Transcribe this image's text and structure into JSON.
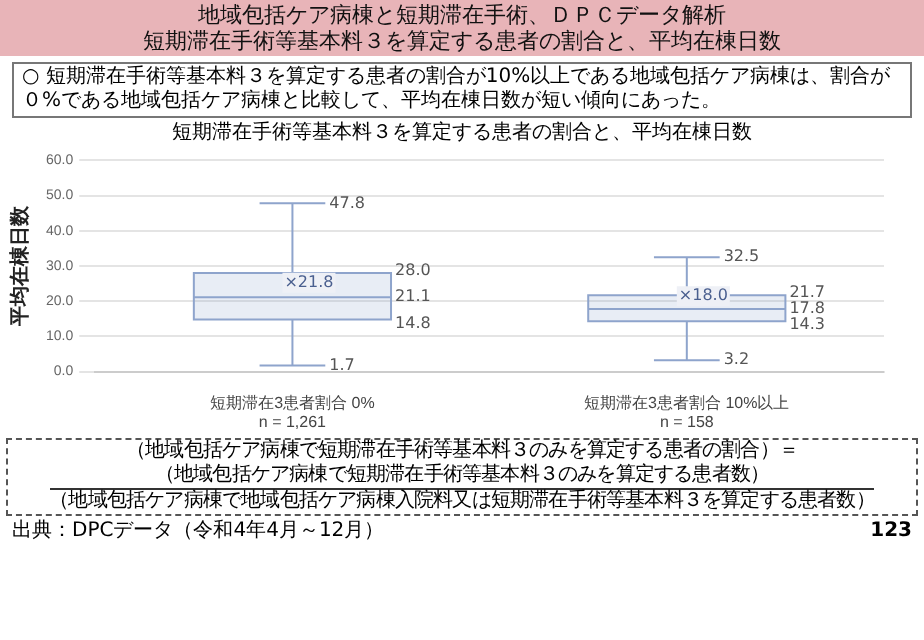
{
  "chart_data": {
    "type": "box",
    "title": "短期滞在手術等基本料３を算定する患者の割合と、平均在棟日数",
    "subtitle": "○ 短期滞在手術等基本料３を算定する患者の割合が10%以上である地域包括ケア病棟は、割合が０%である地域包括ケア病棟と比較して、平均在棟日数が短い傾向にあった。",
    "ylabel": "平均在棟日数",
    "categories": [
      "短期滞在3患者割合 0%\nn = 1,261",
      "短期滞在3患者割合 10%以上\nn = 158"
    ],
    "series": [
      {
        "color": "#8ea4cc",
        "boxes": [
          {
            "low": 1.7,
            "q1": 14.8,
            "median": 21.1,
            "q3": 28.0,
            "high": 47.8,
            "mean": 21.8
          },
          {
            "low": 3.2,
            "q1": 14.3,
            "median": 17.8,
            "q3": 21.7,
            "high": 32.5,
            "mean": 18.0
          }
        ]
      }
    ],
    "ylim": [
      0,
      60
    ],
    "yticks": [
      {
        "value": 0,
        "label": "0.0"
      },
      {
        "value": 10,
        "label": "10.0"
      },
      {
        "value": 20,
        "label": "20.0"
      },
      {
        "value": 30,
        "label": "30.0"
      },
      {
        "value": 40,
        "label": "40.0"
      },
      {
        "value": 50,
        "label": "50.0"
      },
      {
        "value": 60,
        "label": "60.0"
      }
    ],
    "grid": "y",
    "annotations": [
      "地域包括ケア病棟と短期滞在手術、ＤＰＣデータ解析",
      "（地域包括ケア病棟で短期滞在手術等基本料３のみを算定する患者の割合）＝",
      "（地域包括ケア病棟で短期滞在手術等基本料３のみを算定する患者数）",
      "（地域包括ケア病棟で地域包括ケア病棟入院料又は短期滞在手術等基本料３を算定する患者数）",
      "出典：DPCデータ（令和4年4月～12月）",
      "123",
      "28.0",
      "21.1",
      "14.8",
      "21.7",
      "17.8",
      "14.3",
      {
        "text": "47.8",
        "x": "短期滞在3患者割合 0%\nn = 1,261",
        "y": 47.8
      },
      {
        "text": "×21.8",
        "x": "短期滞在3患者割合 0%\nn = 1,261",
        "y": 21.8
      },
      {
        "text": "1.7",
        "x": "短期滞在3患者割合 0%\nn = 1,261",
        "y": 1.7
      },
      {
        "text": "32.5",
        "x": "短期滞在3患者割合 10%以上\nn = 158",
        "y": 32.5
      },
      {
        "text": "×18.0",
        "x": "短期滞在3患者割合 10%以上\nn = 158",
        "y": 18.0
      },
      {
        "text": "3.2",
        "x": "短期滞在3患者割合 10%以上\nn = 158",
        "y": 3.2
      }
    ]
  }
}
